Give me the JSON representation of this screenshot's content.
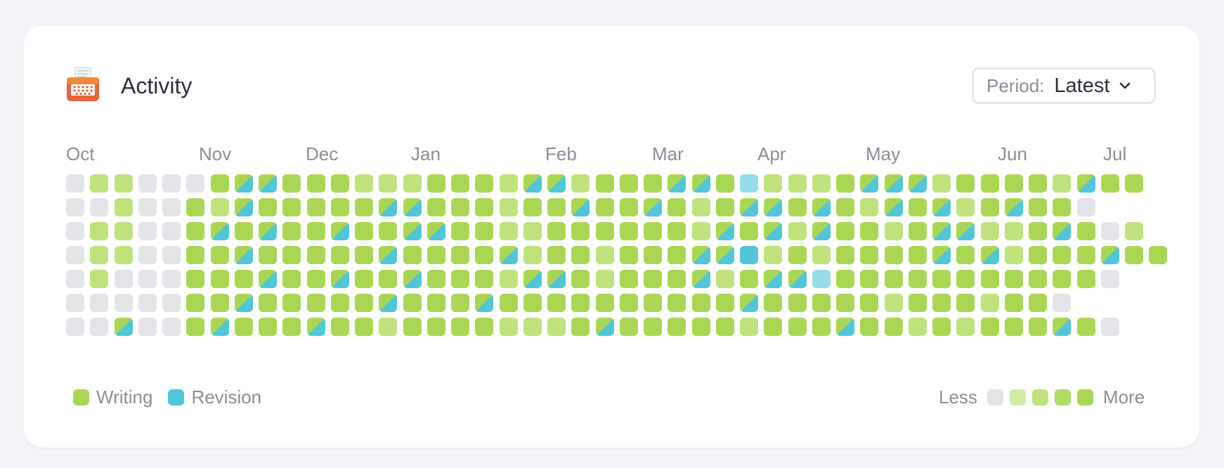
{
  "app": {
    "title": "Activity"
  },
  "period": {
    "label": "Period:",
    "value": "Latest"
  },
  "months": [
    "Oct",
    "Nov",
    "Dec",
    "Jan",
    "Feb",
    "Mar",
    "Apr",
    "May",
    "Jun",
    "Jul"
  ],
  "legend": {
    "writing_label": "Writing",
    "revision_label": "Revision",
    "less_label": "Less",
    "more_label": "More"
  },
  "colors": {
    "empty": "#e3e4e8",
    "level1": "#d2eba4",
    "level2": "#bfe27d",
    "level3": "#a9d753",
    "writing": "#a9d753",
    "revision": "#52c6d9",
    "revision_light": "#94dde8",
    "text_muted": "#8a8e96",
    "text_dark": "#2b2f38"
  },
  "chart_data": {
    "type": "heatmap",
    "level_legend": [
      "empty",
      "level1",
      "level2",
      "level3"
    ],
    "level_codes": {
      "0": "empty",
      "1": "writing level 1",
      "2": "writing level 2",
      "3": "writing level 3",
      "W": "mixed writing and revision",
      "R": "revision",
      "r": "light revision"
    },
    "rows": [
      "0220003WW3332223332WW2333WW3r2223WWW233332W33",
      "0020032W33333WW333233W33W323WW3W32W3W23W330",
      "022003W3W33W33WW33223333332W3W2W3323WW223W302",
      "0220033W33333W3333W2332333WWR2323333W3W2333W33",
      "02000333W33W33W3332WW32333W23WWr333333333330",
      "0000033W33333W333W3333333333W3333323332330",
      "00W003W333W33233332223W333332333W33232333W30"
    ]
  }
}
